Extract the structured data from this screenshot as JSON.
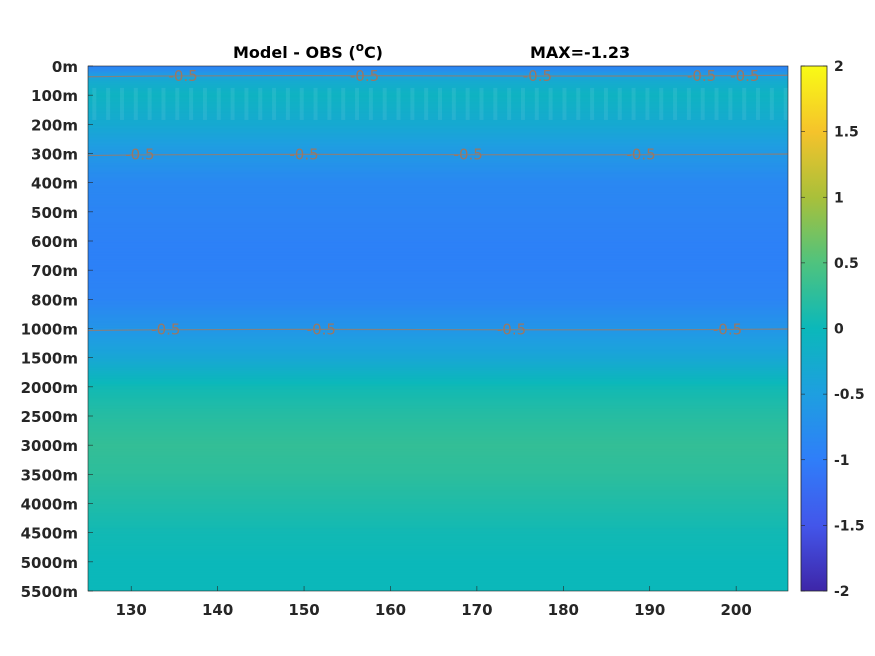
{
  "chart_data": {
    "type": "heatmap",
    "title": "Model - OBS (°C)",
    "title_parts": {
      "prefix": "Model - OBS (",
      "sup": "o",
      "suffix": "C)"
    },
    "annotation": "MAX=-1.23",
    "xlabel": "",
    "ylabel": "",
    "xlim": [
      125,
      206
    ],
    "x_ticks": [
      130,
      140,
      150,
      160,
      170,
      180,
      190,
      200
    ],
    "x_tick_labels": [
      "130",
      "140",
      "150",
      "160",
      "170",
      "180",
      "190",
      "200"
    ],
    "y_tick_labels": [
      "0m",
      "100m",
      "200m",
      "300m",
      "400m",
      "500m",
      "600m",
      "700m",
      "800m",
      "1000m",
      "1500m",
      "2000m",
      "2500m",
      "3000m",
      "3500m",
      "4000m",
      "4500m",
      "5000m",
      "5500m"
    ],
    "colorbar": {
      "colormap": "parula",
      "range": [
        -2,
        2
      ],
      "ticks": [
        2,
        1.5,
        1,
        0.5,
        0,
        -0.5,
        -1,
        -1.5,
        -2
      ],
      "tick_labels": [
        "2",
        "1.5",
        "1",
        "0.5",
        "0",
        "-0.5",
        "-1",
        "-1.5",
        "-2"
      ]
    },
    "depth_profile": {
      "depth": [
        "0m",
        "50m",
        "100m",
        "200m",
        "300m",
        "400m",
        "500m",
        "600m",
        "700m",
        "800m",
        "1000m",
        "1500m",
        "2000m",
        "2500m",
        "3000m",
        "3500m",
        "4000m",
        "4500m",
        "5000m",
        "5500m"
      ],
      "value": [
        -0.95,
        -0.3,
        -0.1,
        -0.3,
        -0.6,
        -0.85,
        -0.9,
        -0.95,
        -0.95,
        -0.9,
        -0.65,
        -0.35,
        0.05,
        0.2,
        0.3,
        0.25,
        0.15,
        0.05,
        0,
        0
      ]
    },
    "contours": [
      {
        "level": -0.5,
        "depth_index": 0.3,
        "labels_x": [
          136,
          157,
          177,
          196,
          201
        ]
      },
      {
        "level": -0.5,
        "depth_index": 3.0,
        "labels_x": [
          131,
          150,
          169,
          189
        ]
      },
      {
        "level": -0.5,
        "depth_index": 9.0,
        "labels_x": [
          134,
          152,
          174,
          199
        ]
      }
    ],
    "contour_labels": [
      "-0.5",
      "-0.5",
      "-0.5",
      "-0.5",
      "-0.5",
      "-0.5",
      "-0.5",
      "-0.5",
      "-0.5",
      "-0.5",
      "-0.5",
      "-0.5",
      "-0.5"
    ],
    "grid": false,
    "legend": "none"
  }
}
